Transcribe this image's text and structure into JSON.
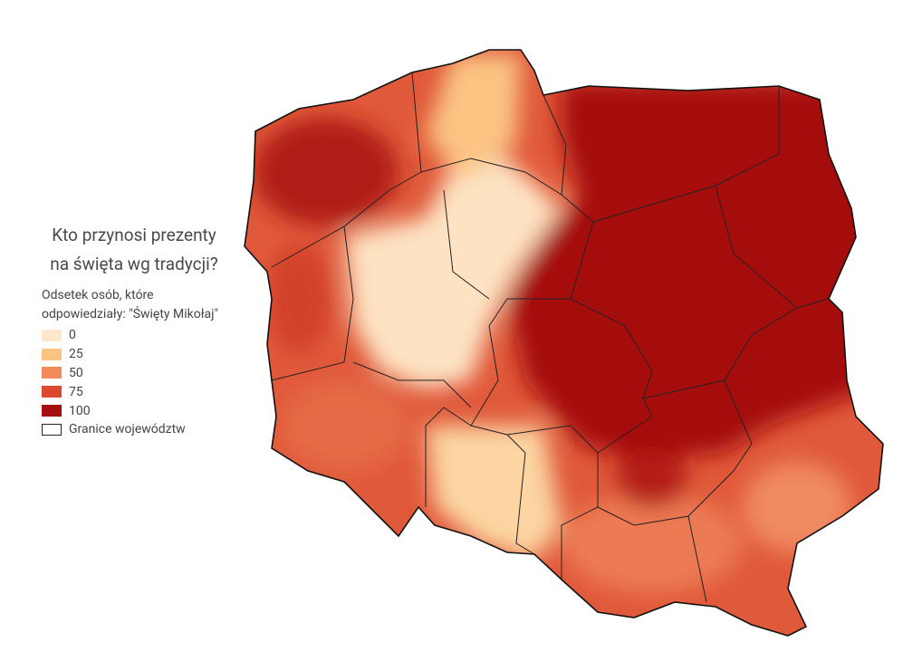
{
  "legend": {
    "title_lines": [
      "Kto przynosi prezenty",
      "na święta wg tradycji?"
    ],
    "subtitle_lines": [
      "Odsetek osób, które",
      "odpowiedziały: \"Święty Mikołaj\""
    ],
    "items": [
      {
        "label": "0",
        "color": "#fde8cc"
      },
      {
        "label": "25",
        "color": "#fbc483"
      },
      {
        "label": "50",
        "color": "#f48a5a"
      },
      {
        "label": "75",
        "color": "#dc4a30"
      },
      {
        "label": "100",
        "color": "#a50f0f"
      }
    ],
    "border_label": "Granice województw"
  }
}
